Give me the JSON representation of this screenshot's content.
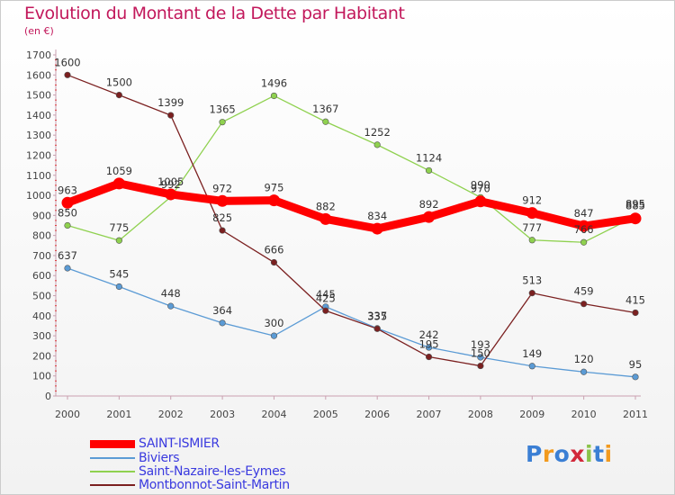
{
  "header": {
    "title": "Evolution du Montant de la Dette par Habitant",
    "unit": "(en €)"
  },
  "logo": {
    "text": "Proxiti",
    "colors": [
      "#3b7fd4",
      "#f29a1e",
      "#3b7fd4",
      "#d2283a",
      "#8bc34a",
      "#3b7fd4",
      "#f29a1e"
    ]
  },
  "chart_data": {
    "type": "line",
    "title": "Evolution du Montant de la Dette par Habitant",
    "subtitle": "(en €)",
    "x": [
      "2000",
      "2001",
      "2002",
      "2003",
      "2004",
      "2005",
      "2006",
      "2007",
      "2008",
      "2009",
      "2010",
      "2011"
    ],
    "ylim": [
      0,
      1700
    ],
    "yticks": [
      0,
      100,
      200,
      300,
      400,
      500,
      600,
      700,
      800,
      900,
      1000,
      1100,
      1200,
      1300,
      1400,
      1500,
      1600,
      1700
    ],
    "grid": false,
    "legend": "bottom-left",
    "series": [
      {
        "name": "SAINT-ISMIER",
        "color": "#ff0000",
        "values": [
          963,
          1059,
          1005,
          972,
          975,
          882,
          834,
          892,
          970,
          912,
          847,
          885
        ]
      },
      {
        "name": "Biviers",
        "color": "#5b9bd5",
        "values": [
          637,
          545,
          448,
          364,
          300,
          445,
          337,
          242,
          193,
          149,
          120,
          95
        ]
      },
      {
        "name": "Saint-Nazaire-les-Eymes",
        "color": "#8fd14f",
        "values": [
          850,
          775,
          992,
          1365,
          1496,
          1367,
          1252,
          1124,
          990,
          777,
          766,
          895
        ]
      },
      {
        "name": "Montbonnot-Saint-Martin",
        "color": "#7b2020",
        "values": [
          1600,
          1500,
          1399,
          825,
          666,
          425,
          335,
          195,
          150,
          513,
          459,
          415
        ]
      }
    ]
  }
}
